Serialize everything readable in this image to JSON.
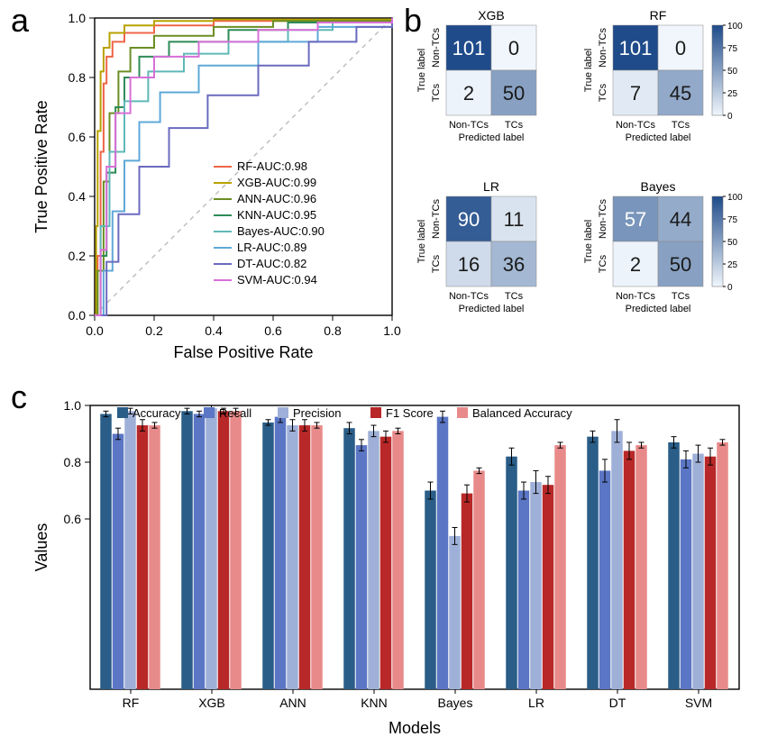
{
  "labels": {
    "a": "a",
    "b": "b",
    "c": "c",
    "fpr": "False Positive Rate",
    "tpr": "True Positive Rate",
    "models": "Models",
    "values": "Values",
    "true_label": "True label",
    "pred_label": "Predicted label",
    "nontcs": "Non-TCs",
    "tcs": "TCs"
  },
  "roc": {
    "type": "line",
    "xlim": [
      0,
      1
    ],
    "ylim": [
      0,
      1
    ],
    "ticks": [
      0.0,
      0.2,
      0.4,
      0.6,
      0.8,
      1.0
    ],
    "axis_color": "#000000",
    "diagonal_color": "#bfbfbf",
    "background": "#ffffff",
    "line_width": 2,
    "legend_fontsize": 13,
    "label_fontsize": 18,
    "tick_fontsize": 14,
    "curves": [
      {
        "name": "RF",
        "auc": "0.98",
        "label": "RF-AUC:0.98",
        "color": "#ef6548",
        "pts": [
          [
            0,
            0
          ],
          [
            0.01,
            0.2
          ],
          [
            0.02,
            0.55
          ],
          [
            0.03,
            0.78
          ],
          [
            0.04,
            0.87
          ],
          [
            0.06,
            0.92
          ],
          [
            0.1,
            0.95
          ],
          [
            0.2,
            0.975
          ],
          [
            0.4,
            0.99
          ],
          [
            1,
            1
          ]
        ]
      },
      {
        "name": "XGB",
        "auc": "0.99",
        "label": "XGB-AUC:0.99",
        "color": "#b8a200",
        "pts": [
          [
            0,
            0
          ],
          [
            0.005,
            0.3
          ],
          [
            0.01,
            0.62
          ],
          [
            0.02,
            0.82
          ],
          [
            0.03,
            0.9
          ],
          [
            0.05,
            0.95
          ],
          [
            0.1,
            0.975
          ],
          [
            0.2,
            0.99
          ],
          [
            0.4,
            0.995
          ],
          [
            1,
            1
          ]
        ]
      },
      {
        "name": "ANN",
        "auc": "0.96",
        "label": "ANN-AUC:0.96",
        "color": "#6b8e23",
        "pts": [
          [
            0,
            0
          ],
          [
            0.01,
            0.15
          ],
          [
            0.03,
            0.45
          ],
          [
            0.05,
            0.68
          ],
          [
            0.08,
            0.82
          ],
          [
            0.12,
            0.9
          ],
          [
            0.2,
            0.94
          ],
          [
            0.4,
            0.97
          ],
          [
            0.6,
            0.99
          ],
          [
            1,
            1
          ]
        ]
      },
      {
        "name": "KNN",
        "auc": "0.95",
        "label": "KNN-AUC:0.95",
        "color": "#2e8b57",
        "pts": [
          [
            0,
            0
          ],
          [
            0.02,
            0.2
          ],
          [
            0.04,
            0.48
          ],
          [
            0.07,
            0.7
          ],
          [
            0.1,
            0.8
          ],
          [
            0.15,
            0.87
          ],
          [
            0.25,
            0.92
          ],
          [
            0.45,
            0.96
          ],
          [
            0.65,
            0.985
          ],
          [
            1,
            1
          ]
        ]
      },
      {
        "name": "Bayes",
        "auc": "0.90",
        "label": "Bayes-AUC:0.90",
        "color": "#5fb8b8",
        "pts": [
          [
            0,
            0
          ],
          [
            0.02,
            0.3
          ],
          [
            0.05,
            0.55
          ],
          [
            0.1,
            0.72
          ],
          [
            0.18,
            0.82
          ],
          [
            0.3,
            0.88
          ],
          [
            0.45,
            0.92
          ],
          [
            0.65,
            0.96
          ],
          [
            0.8,
            0.985
          ],
          [
            1,
            1
          ]
        ]
      },
      {
        "name": "LR",
        "auc": "0.89",
        "label": "LR-AUC:0.89",
        "color": "#5fa8d8",
        "pts": [
          [
            0,
            0
          ],
          [
            0.03,
            0.15
          ],
          [
            0.06,
            0.35
          ],
          [
            0.1,
            0.52
          ],
          [
            0.15,
            0.65
          ],
          [
            0.22,
            0.75
          ],
          [
            0.35,
            0.84
          ],
          [
            0.55,
            0.92
          ],
          [
            0.75,
            0.97
          ],
          [
            1,
            1
          ]
        ]
      },
      {
        "name": "DT",
        "auc": "0.82",
        "label": "DT-AUC:0.82",
        "color": "#6a6abf",
        "pts": [
          [
            0,
            0
          ],
          [
            0.04,
            0.18
          ],
          [
            0.08,
            0.34
          ],
          [
            0.15,
            0.5
          ],
          [
            0.25,
            0.63
          ],
          [
            0.38,
            0.74
          ],
          [
            0.55,
            0.84
          ],
          [
            0.72,
            0.92
          ],
          [
            0.88,
            0.97
          ],
          [
            1,
            1
          ]
        ]
      },
      {
        "name": "SVM",
        "auc": "0.94",
        "label": "SVM-AUC:0.94",
        "color": "#d86fd8",
        "pts": [
          [
            0,
            0
          ],
          [
            0.02,
            0.22
          ],
          [
            0.04,
            0.5
          ],
          [
            0.07,
            0.68
          ],
          [
            0.12,
            0.8
          ],
          [
            0.2,
            0.87
          ],
          [
            0.35,
            0.92
          ],
          [
            0.55,
            0.96
          ],
          [
            0.75,
            0.985
          ],
          [
            1,
            1
          ]
        ]
      }
    ]
  },
  "confusion": {
    "type": "heatmap",
    "colorbar": {
      "min": 0,
      "max": 100,
      "ticks": [
        0,
        25,
        50,
        75,
        100
      ]
    },
    "cmap_low": "#f0f6fc",
    "cmap_high": "#1f4b8a",
    "light_text": "#ffffff",
    "dark_text": "#1a1a1a",
    "cell_fontsize": 22,
    "title_fontsize": 14,
    "axis_fontsize": 11,
    "x_labels": [
      "Non-TCs",
      "TCs"
    ],
    "y_labels": [
      "Non-TCs",
      "TCs"
    ],
    "matrices": [
      {
        "title": "XGB",
        "cells": [
          [
            101,
            0
          ],
          [
            2,
            50
          ]
        ]
      },
      {
        "title": "RF",
        "cells": [
          [
            101,
            0
          ],
          [
            7,
            45
          ]
        ]
      },
      {
        "title": "LR",
        "cells": [
          [
            90,
            11
          ],
          [
            16,
            36
          ]
        ]
      },
      {
        "title": "Bayes",
        "cells": [
          [
            57,
            44
          ],
          [
            2,
            50
          ]
        ]
      }
    ]
  },
  "bars": {
    "type": "grouped-bar",
    "ylim": [
      0,
      1.0
    ],
    "yticks": [
      0.6,
      0.8,
      1.0
    ],
    "tick_fontsize": 14,
    "label_fontsize": 18,
    "legend_fontsize": 13,
    "bar_width": 0.16,
    "error_color": "#000000",
    "error_cap": 3,
    "axis_color": "#000000",
    "background": "#ffffff",
    "metrics": [
      {
        "name": "Accuracy",
        "color": "#2a5d87"
      },
      {
        "name": "Recall",
        "color": "#5b76c4"
      },
      {
        "name": "Precision",
        "color": "#9fb0d8"
      },
      {
        "name": "F1 Score",
        "color": "#b82828"
      },
      {
        "name": "Balanced Accuracy",
        "color": "#e88a8a"
      }
    ],
    "models": [
      "RF",
      "XGB",
      "ANN",
      "KNN",
      "Bayes",
      "LR",
      "DT",
      "SVM"
    ],
    "values": {
      "RF": [
        0.97,
        0.9,
        0.98,
        0.93,
        0.93
      ],
      "XGB": [
        0.98,
        0.97,
        0.99,
        0.98,
        0.98
      ],
      "ANN": [
        0.94,
        0.96,
        0.93,
        0.93,
        0.93
      ],
      "KNN": [
        0.92,
        0.86,
        0.91,
        0.89,
        0.91
      ],
      "Bayes": [
        0.7,
        0.96,
        0.54,
        0.69,
        0.77
      ],
      "LR": [
        0.82,
        0.7,
        0.73,
        0.72,
        0.86
      ],
      "DT": [
        0.89,
        0.77,
        0.91,
        0.84,
        0.86
      ],
      "SVM": [
        0.87,
        0.81,
        0.83,
        0.82,
        0.87
      ]
    },
    "errors": {
      "RF": [
        0.01,
        0.02,
        0.01,
        0.02,
        0.01
      ],
      "XGB": [
        0.01,
        0.01,
        0.01,
        0.01,
        0.01
      ],
      "ANN": [
        0.01,
        0.02,
        0.02,
        0.02,
        0.01
      ],
      "KNN": [
        0.02,
        0.02,
        0.02,
        0.02,
        0.01
      ],
      "Bayes": [
        0.03,
        0.02,
        0.03,
        0.03,
        0.01
      ],
      "LR": [
        0.03,
        0.03,
        0.04,
        0.03,
        0.01
      ],
      "DT": [
        0.02,
        0.04,
        0.04,
        0.03,
        0.01
      ],
      "SVM": [
        0.02,
        0.03,
        0.03,
        0.03,
        0.01
      ]
    }
  }
}
